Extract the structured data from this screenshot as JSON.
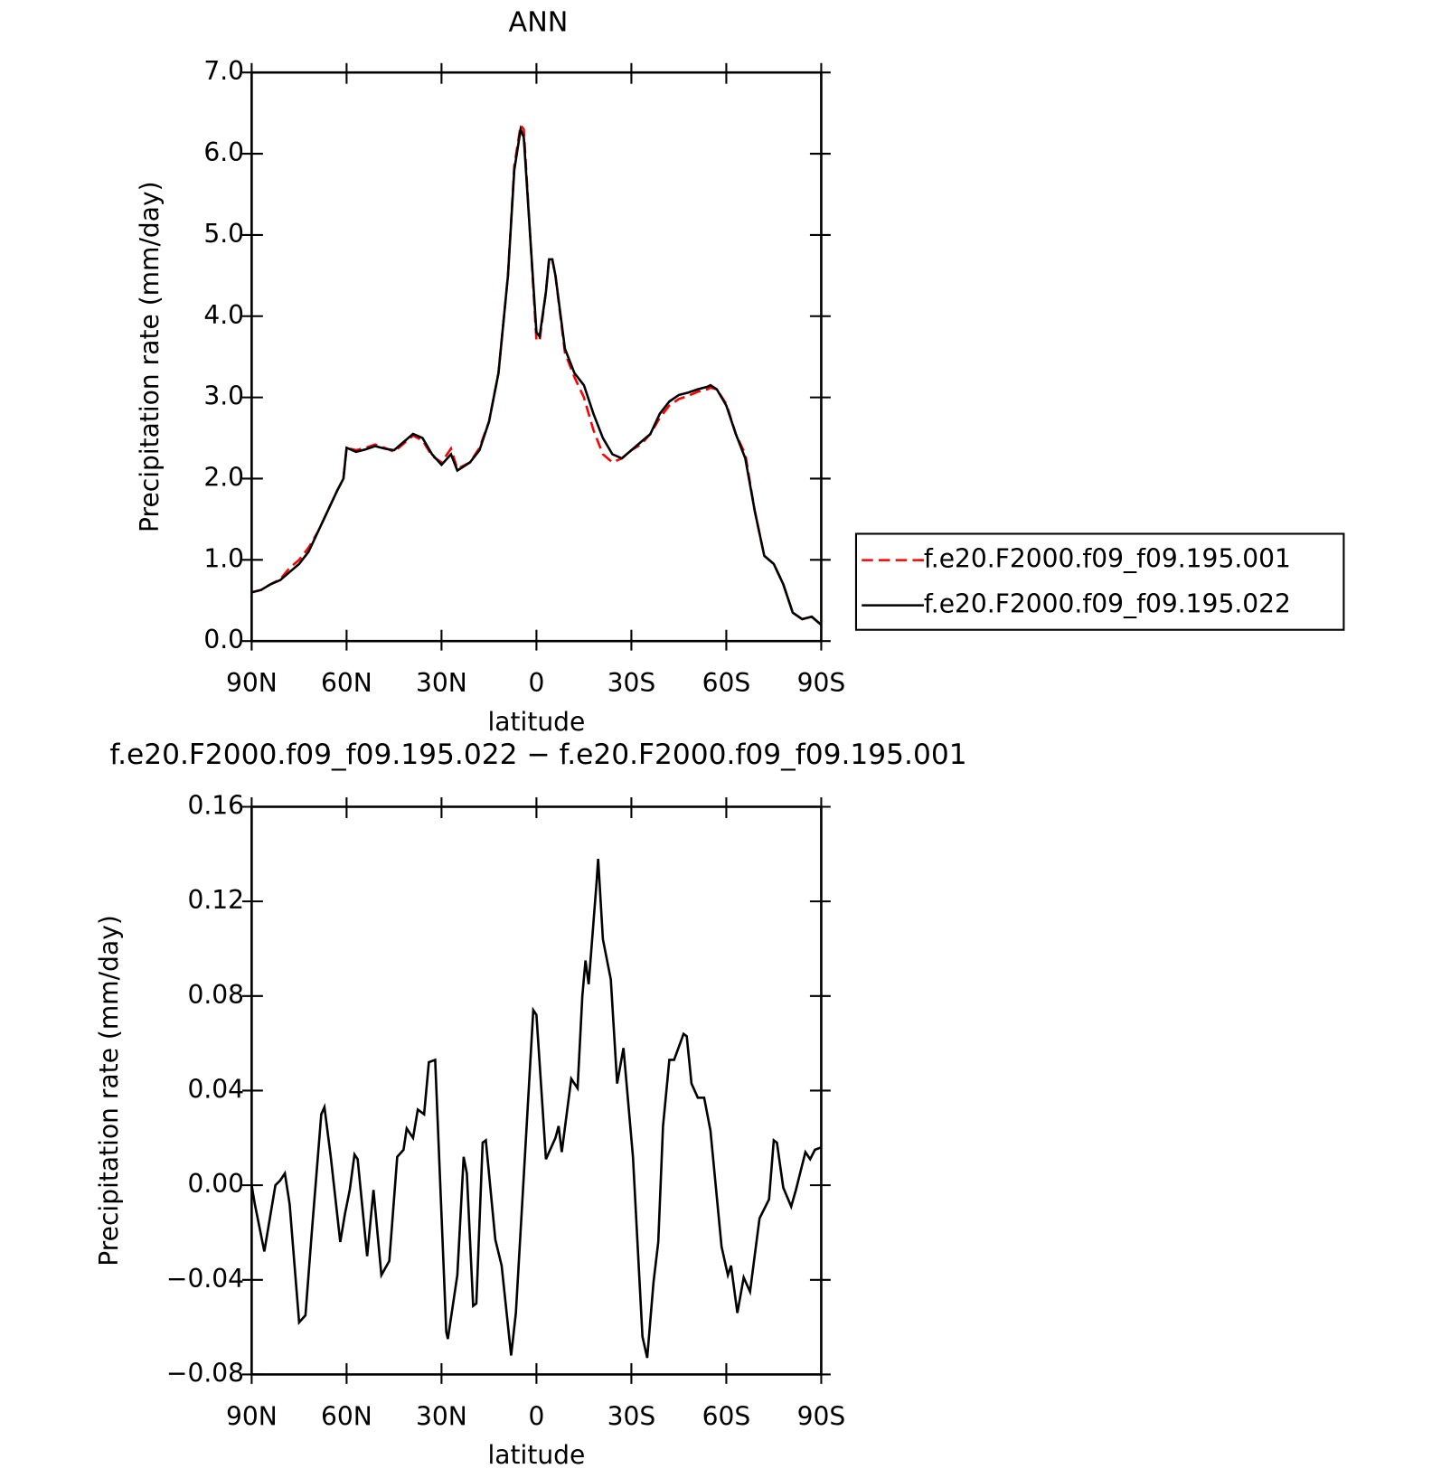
{
  "chart_data": [
    {
      "type": "line",
      "title": "ANN",
      "xlabel": "latitude",
      "ylabel": "Precipitation rate (mm/day)",
      "x": [
        90,
        87,
        84,
        81,
        78,
        75,
        72,
        69,
        66,
        63,
        61,
        60,
        57,
        54,
        51,
        48,
        45,
        42,
        39,
        36,
        33,
        30,
        27,
        25,
        21,
        18,
        15,
        12,
        9,
        7,
        5,
        4,
        2,
        0,
        -1,
        -3,
        -4,
        -5,
        -6,
        -9,
        -12,
        -15,
        -18,
        -21,
        -24,
        -27,
        -30,
        -33,
        -36,
        -39,
        -42,
        -45,
        -48,
        -51,
        -54,
        -55,
        -57,
        -60,
        -63,
        -66,
        -69,
        -72,
        -75,
        -78,
        -81,
        -84,
        -87,
        -90
      ],
      "series": [
        {
          "name": "f.e20.F2000.f09_f09.195.001",
          "color": "#ff0000",
          "dash": "dashed",
          "values": [
            0.6,
            0.63,
            0.7,
            0.76,
            0.9,
            1.0,
            1.15,
            1.35,
            1.6,
            1.85,
            2.0,
            2.38,
            2.35,
            2.38,
            2.42,
            2.38,
            2.33,
            2.43,
            2.53,
            2.47,
            2.28,
            2.2,
            2.37,
            2.12,
            2.2,
            2.38,
            2.7,
            3.3,
            4.5,
            5.85,
            6.35,
            6.3,
            5.0,
            3.7,
            3.7,
            4.3,
            4.72,
            4.7,
            4.5,
            3.55,
            3.25,
            3.0,
            2.6,
            2.3,
            2.2,
            2.25,
            2.35,
            2.42,
            2.55,
            2.75,
            2.9,
            2.98,
            3.02,
            3.07,
            3.1,
            3.12,
            3.1,
            2.92,
            2.55,
            2.3,
            1.6,
            1.05,
            0.95,
            0.7,
            0.35,
            0.27,
            0.3,
            0.2
          ]
        },
        {
          "name": "f.e20.F2000.f09_f09.195.022",
          "color": "#000000",
          "dash": "solid",
          "values": [
            0.6,
            0.63,
            0.7,
            0.75,
            0.85,
            0.95,
            1.1,
            1.35,
            1.6,
            1.85,
            2.0,
            2.38,
            2.33,
            2.36,
            2.4,
            2.37,
            2.35,
            2.45,
            2.55,
            2.5,
            2.3,
            2.17,
            2.3,
            2.1,
            2.2,
            2.35,
            2.7,
            3.3,
            4.5,
            5.8,
            6.3,
            6.2,
            5.0,
            3.8,
            3.75,
            4.3,
            4.7,
            4.7,
            4.5,
            3.6,
            3.3,
            3.15,
            2.8,
            2.5,
            2.3,
            2.25,
            2.35,
            2.45,
            2.55,
            2.8,
            2.95,
            3.03,
            3.06,
            3.1,
            3.13,
            3.15,
            3.1,
            2.9,
            2.55,
            2.25,
            1.6,
            1.05,
            0.95,
            0.7,
            0.35,
            0.27,
            0.3,
            0.2
          ]
        }
      ],
      "xlim": [
        90,
        -90
      ],
      "xticks": [
        {
          "value": 90,
          "label": "90N"
        },
        {
          "value": 60,
          "label": "60N"
        },
        {
          "value": 30,
          "label": "30N"
        },
        0,
        {
          "value": -30,
          "label": "30S"
        },
        {
          "value": -60,
          "label": "60S"
        },
        {
          "value": -90,
          "label": "90S"
        }
      ],
      "ylim": [
        0,
        7
      ],
      "yticks": [
        {
          "value": 0,
          "label": "0.0"
        },
        {
          "value": 1,
          "label": "1.0"
        },
        {
          "value": 2,
          "label": "2.0"
        },
        {
          "value": 3,
          "label": "3.0"
        },
        {
          "value": 4,
          "label": "4.0"
        },
        {
          "value": 5,
          "label": "5.0"
        },
        {
          "value": 6,
          "label": "6.0"
        },
        {
          "value": 7,
          "label": "7.0"
        }
      ],
      "legend": "right"
    },
    {
      "type": "line",
      "title": "f.e20.F2000.f09_f09.195.022 − f.e20.F2000.f09_f09.195.001",
      "xlabel": "latitude",
      "ylabel": "Precipitation rate (mm/day)",
      "x": [
        90,
        89,
        86,
        82.5,
        81,
        79.5,
        78,
        75,
        73,
        71,
        68,
        67,
        65,
        62,
        60.5,
        59,
        57.5,
        56.5,
        53.5,
        51.5,
        49,
        46.5,
        44,
        42,
        41,
        39,
        37.5,
        35.5,
        34,
        32,
        28.5,
        28,
        25,
        23,
        22,
        20,
        19,
        17,
        16,
        13,
        11,
        8,
        6.5,
        4,
        1,
        0,
        -3,
        -6,
        -7,
        -8,
        -11,
        -13,
        -14.5,
        -15.5,
        -16.5,
        -19,
        -19.5,
        -21,
        -23.5,
        -25.5,
        -27.5,
        -30.5,
        -33.5,
        -35,
        -37,
        -38.5,
        -40,
        -42,
        -43.5,
        -46.5,
        -47.5,
        -49,
        -51,
        -53,
        -55,
        -58.5,
        -60.5,
        -61.5,
        -63.5,
        -65.5,
        -67.5,
        -70.5,
        -73.5,
        -75,
        -76,
        -78,
        -80.5,
        -82,
        -85,
        -86.5,
        -88,
        -90
      ],
      "series": [
        {
          "name": "f.e20.F2000.f09_f09.195.022 − f.e20.F2000.f09_f09.195.001",
          "color": "#000000",
          "dash": "solid",
          "values": [
            0.0,
            -0.008,
            -0.028,
            0.0,
            0.002,
            0.005,
            -0.008,
            -0.058,
            -0.055,
            -0.02,
            0.03,
            0.033,
            0.012,
            -0.024,
            -0.012,
            -0.002,
            0.013,
            0.011,
            -0.03,
            -0.002,
            -0.038,
            -0.032,
            0.012,
            0.015,
            0.024,
            0.02,
            0.032,
            0.03,
            0.052,
            0.053,
            -0.062,
            -0.065,
            -0.038,
            0.012,
            0.005,
            -0.051,
            -0.05,
            0.018,
            0.019,
            -0.023,
            -0.034,
            -0.072,
            -0.054,
            0.004,
            0.074,
            0.072,
            0.011,
            0.02,
            0.025,
            0.014,
            0.045,
            0.041,
            0.08,
            0.095,
            0.085,
            0.128,
            0.138,
            0.104,
            0.087,
            0.043,
            0.058,
            0.012,
            -0.064,
            -0.073,
            -0.041,
            -0.024,
            0.025,
            0.053,
            0.053,
            0.064,
            0.063,
            0.043,
            0.037,
            0.037,
            0.023,
            -0.026,
            -0.038,
            -0.034,
            -0.054,
            -0.039,
            -0.045,
            -0.014,
            -0.006,
            0.019,
            0.018,
            -0.001,
            -0.009,
            -0.002,
            0.014,
            0.011,
            0.015,
            0.016
          ]
        }
      ],
      "xlim": [
        90,
        -90
      ],
      "xticks": [
        {
          "value": 90,
          "label": "90N"
        },
        {
          "value": 60,
          "label": "60N"
        },
        {
          "value": 30,
          "label": "30N"
        },
        0,
        {
          "value": -30,
          "label": "30S"
        },
        {
          "value": -60,
          "label": "60S"
        },
        {
          "value": -90,
          "label": "90S"
        }
      ],
      "ylim": [
        -0.08,
        0.16
      ],
      "yticks": [
        {
          "value": -0.08,
          "label": "−0.08"
        },
        {
          "value": -0.04,
          "label": "−0.04"
        },
        {
          "value": 0,
          "label": "0.00"
        },
        0.04,
        0.08,
        0.12,
        0.16
      ]
    }
  ]
}
